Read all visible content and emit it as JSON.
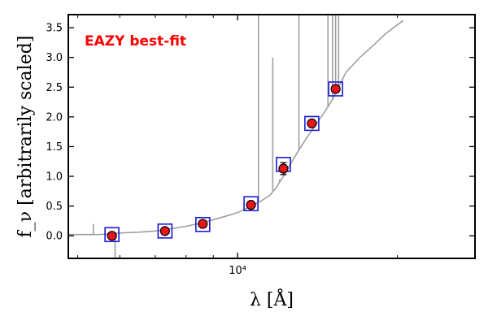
{
  "chart_data": {
    "type": "scatter",
    "x_scale": "log",
    "title": "",
    "xlabel": "λ [Å]",
    "ylabel": "f_ν [arbitrarily scaled]",
    "xlim": [
      4800,
      28000
    ],
    "ylim": [
      -0.38,
      3.72
    ],
    "x_ticks": [
      10000
    ],
    "x_tick_labels": [
      "10⁴"
    ],
    "y_ticks": [
      0.0,
      0.5,
      1.0,
      1.5,
      2.0,
      2.5,
      3.0,
      3.5
    ],
    "y_tick_labels": [
      "0.0",
      "0.5",
      "1.0",
      "1.5",
      "2.0",
      "2.5",
      "3.0",
      "3.5"
    ],
    "annotation": "EAZY best-fit",
    "colors": {
      "annotation": "#ff0000",
      "template": "#a0a0a0",
      "observed_fill": "#e8141a",
      "model_box": "#1a1ad6"
    },
    "series": [
      {
        "kind": "model_photometry",
        "marker": "square",
        "x": [
          5800,
          7300,
          8600,
          10600,
          12200,
          13800,
          15300
        ],
        "y": [
          0.02,
          0.08,
          0.19,
          0.54,
          1.2,
          1.89,
          2.47
        ]
      },
      {
        "kind": "observed_photometry",
        "marker": "circle",
        "x": [
          5800,
          7300,
          8600,
          10600,
          12200,
          13800,
          15300
        ],
        "y": [
          0.0,
          0.08,
          0.2,
          0.52,
          1.13,
          1.89,
          2.47
        ],
        "yerr": [
          0.02,
          0.02,
          0.02,
          0.03,
          0.1,
          0.05,
          0.04
        ]
      },
      {
        "kind": "best_fit_template",
        "line": true,
        "x": [
          4800,
          5200,
          5500,
          5700,
          5900,
          6100,
          6500,
          7000,
          7500,
          8000,
          8500,
          9000,
          9500,
          10000,
          10500,
          11000,
          11500,
          11800,
          12000,
          12300,
          12600,
          13000,
          13500,
          14000,
          14500,
          15000,
          15500,
          16000,
          17000,
          18000,
          19000,
          20000,
          20500
        ],
        "y": [
          0.02,
          0.02,
          0.02,
          0.03,
          0.04,
          0.05,
          0.06,
          0.08,
          0.12,
          0.16,
          0.21,
          0.27,
          0.33,
          0.39,
          0.48,
          0.57,
          0.68,
          0.8,
          0.9,
          1.05,
          1.22,
          1.42,
          1.65,
          1.85,
          2.05,
          2.25,
          2.5,
          2.75,
          3.0,
          3.2,
          3.4,
          3.55,
          3.62
        ]
      },
      {
        "kind": "template_emission_lines",
        "x": [
          5350,
          10950,
          11650,
          13050,
          14800,
          15100,
          15300,
          15500
        ],
        "y": [
          0.2,
          3.72,
          3.0,
          3.72,
          3.72,
          3.72,
          3.72,
          3.72
        ]
      },
      {
        "kind": "template_absorption_lines",
        "x": [
          5880,
          12000
        ],
        "y": [
          -0.38,
          0.95
        ]
      }
    ]
  }
}
